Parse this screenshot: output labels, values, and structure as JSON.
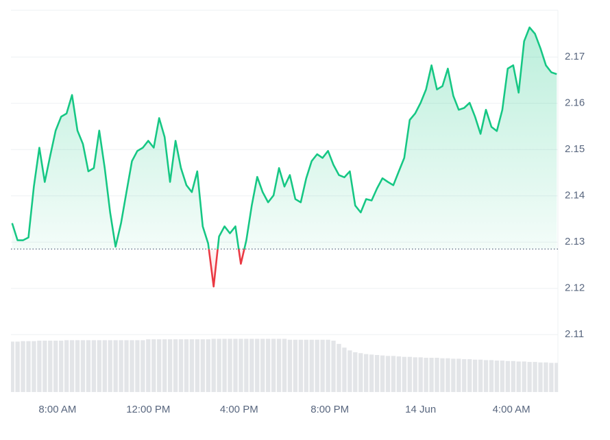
{
  "chart_data": {
    "type": "line",
    "x": [
      6,
      6.24,
      6.48,
      6.72,
      6.96,
      7.2,
      7.44,
      7.68,
      7.92,
      8.16,
      8.4,
      8.64,
      8.88,
      9.12,
      9.36,
      9.6,
      9.84,
      10.08,
      10.32,
      10.56,
      10.8,
      11.04,
      11.28,
      11.52,
      11.76,
      12,
      12.24,
      12.48,
      12.72,
      12.96,
      13.2,
      13.44,
      13.68,
      13.92,
      14.16,
      14.4,
      14.64,
      14.88,
      15.12,
      15.36,
      15.6,
      15.84,
      16.08,
      16.32,
      16.56,
      16.8,
      17.04,
      17.28,
      17.52,
      17.76,
      18,
      18.24,
      18.48,
      18.72,
      18.96,
      19.2,
      19.44,
      19.68,
      19.92,
      20.16,
      20.4,
      20.64,
      20.88,
      21.12,
      21.36,
      21.6,
      21.84,
      22.08,
      22.32,
      22.56,
      22.8,
      23.04,
      23.28,
      23.52,
      23.76,
      24,
      24.24,
      24.48,
      24.72,
      24.96,
      25.2,
      25.44,
      25.68,
      25.92,
      26.16,
      26.4,
      26.64,
      26.88,
      27.12,
      27.36,
      27.6,
      27.84,
      28.08,
      28.32,
      28.56,
      28.8,
      29.04,
      29.28,
      29.52,
      29.76,
      30
    ],
    "values": [
      2.1341,
      2.1304,
      2.1304,
      2.131,
      2.142,
      2.1504,
      2.143,
      2.1487,
      2.1541,
      2.1571,
      2.1578,
      2.1618,
      2.1541,
      2.1512,
      2.1453,
      2.146,
      2.1541,
      2.146,
      2.1364,
      2.129,
      2.1341,
      2.1408,
      2.1475,
      2.1497,
      2.1504,
      2.1519,
      2.1504,
      2.1568,
      2.1527,
      2.143,
      2.1519,
      2.146,
      2.1423,
      2.1408,
      2.1453,
      2.1334,
      2.1297,
      2.1204,
      2.1312,
      2.1334,
      2.1319,
      2.1334,
      2.1253,
      2.1304,
      2.1379,
      2.1441,
      2.1408,
      2.1386,
      2.1401,
      2.146,
      2.142,
      2.1445,
      2.1393,
      2.1386,
      2.1438,
      2.1475,
      2.149,
      2.1482,
      2.1497,
      2.1467,
      2.1445,
      2.144,
      2.1453,
      2.1379,
      2.1364,
      2.1393,
      2.139,
      2.1416,
      2.1438,
      2.143,
      2.1423,
      2.1453,
      2.1482,
      2.1564,
      2.1578,
      2.1601,
      2.163,
      2.1682,
      2.163,
      2.1637,
      2.1675,
      2.1616,
      2.1586,
      2.159,
      2.1601,
      2.1571,
      2.1534,
      2.1586,
      2.1549,
      2.154,
      2.1586,
      2.1675,
      2.1682,
      2.1623,
      2.1734,
      2.1764,
      2.175,
      2.1719,
      2.1682,
      2.1667,
      2.1663
    ],
    "volume": [
      2.1085,
      2.1085,
      2.1086,
      2.1086,
      2.1086,
      2.1087,
      2.1087,
      2.1087,
      2.1087,
      2.1087,
      2.1088,
      2.1088,
      2.1088,
      2.1088,
      2.1088,
      2.1088,
      2.1088,
      2.1088,
      2.1088,
      2.1088,
      2.1088,
      2.1088,
      2.1088,
      2.1088,
      2.1088,
      2.109,
      2.109,
      2.109,
      2.109,
      2.109,
      2.109,
      2.109,
      2.109,
      2.109,
      2.109,
      2.109,
      2.109,
      2.1091,
      2.1091,
      2.1091,
      2.1091,
      2.1091,
      2.1091,
      2.1091,
      2.1091,
      2.1091,
      2.1091,
      2.1091,
      2.1091,
      2.1091,
      2.1091,
      2.1089,
      2.1089,
      2.1089,
      2.1089,
      2.1089,
      2.1089,
      2.1089,
      2.1089,
      2.1087,
      2.108,
      2.1072,
      2.1066,
      2.1062,
      2.106,
      2.1058,
      2.1057,
      2.1056,
      2.1055,
      2.1054,
      2.1054,
      2.1053,
      2.1052,
      2.1052,
      2.1051,
      2.1051,
      2.105,
      2.105,
      2.105,
      2.1049,
      2.1049,
      2.1048,
      2.1048,
      2.1047,
      2.1047,
      2.1046,
      2.1046,
      2.1045,
      2.1045,
      2.1044,
      2.1044,
      2.1043,
      2.1043,
      2.1042,
      2.1042,
      2.1041,
      2.1041,
      2.104,
      2.104,
      2.1039,
      2.1039
    ],
    "baseline": 2.1285,
    "color_up": "#16c784",
    "color_down": "#ea3943",
    "volume_color": "#e3e5e8",
    "xlim": [
      5.95,
      30.05
    ],
    "xticks": [
      {
        "value": 8,
        "label": "8:00 AM"
      },
      {
        "value": 12,
        "label": "12:00 PM"
      },
      {
        "value": 16,
        "label": "4:00 PM"
      },
      {
        "value": 20,
        "label": "8:00 PM"
      },
      {
        "value": 24,
        "label": "14 Jun"
      },
      {
        "value": 28,
        "label": "4:00 AM"
      }
    ],
    "ylim": [
      2.0976,
      2.1801
    ],
    "yticks": [
      2.11,
      2.12,
      2.13,
      2.14,
      2.15,
      2.16,
      2.17
    ],
    "grid": true
  }
}
